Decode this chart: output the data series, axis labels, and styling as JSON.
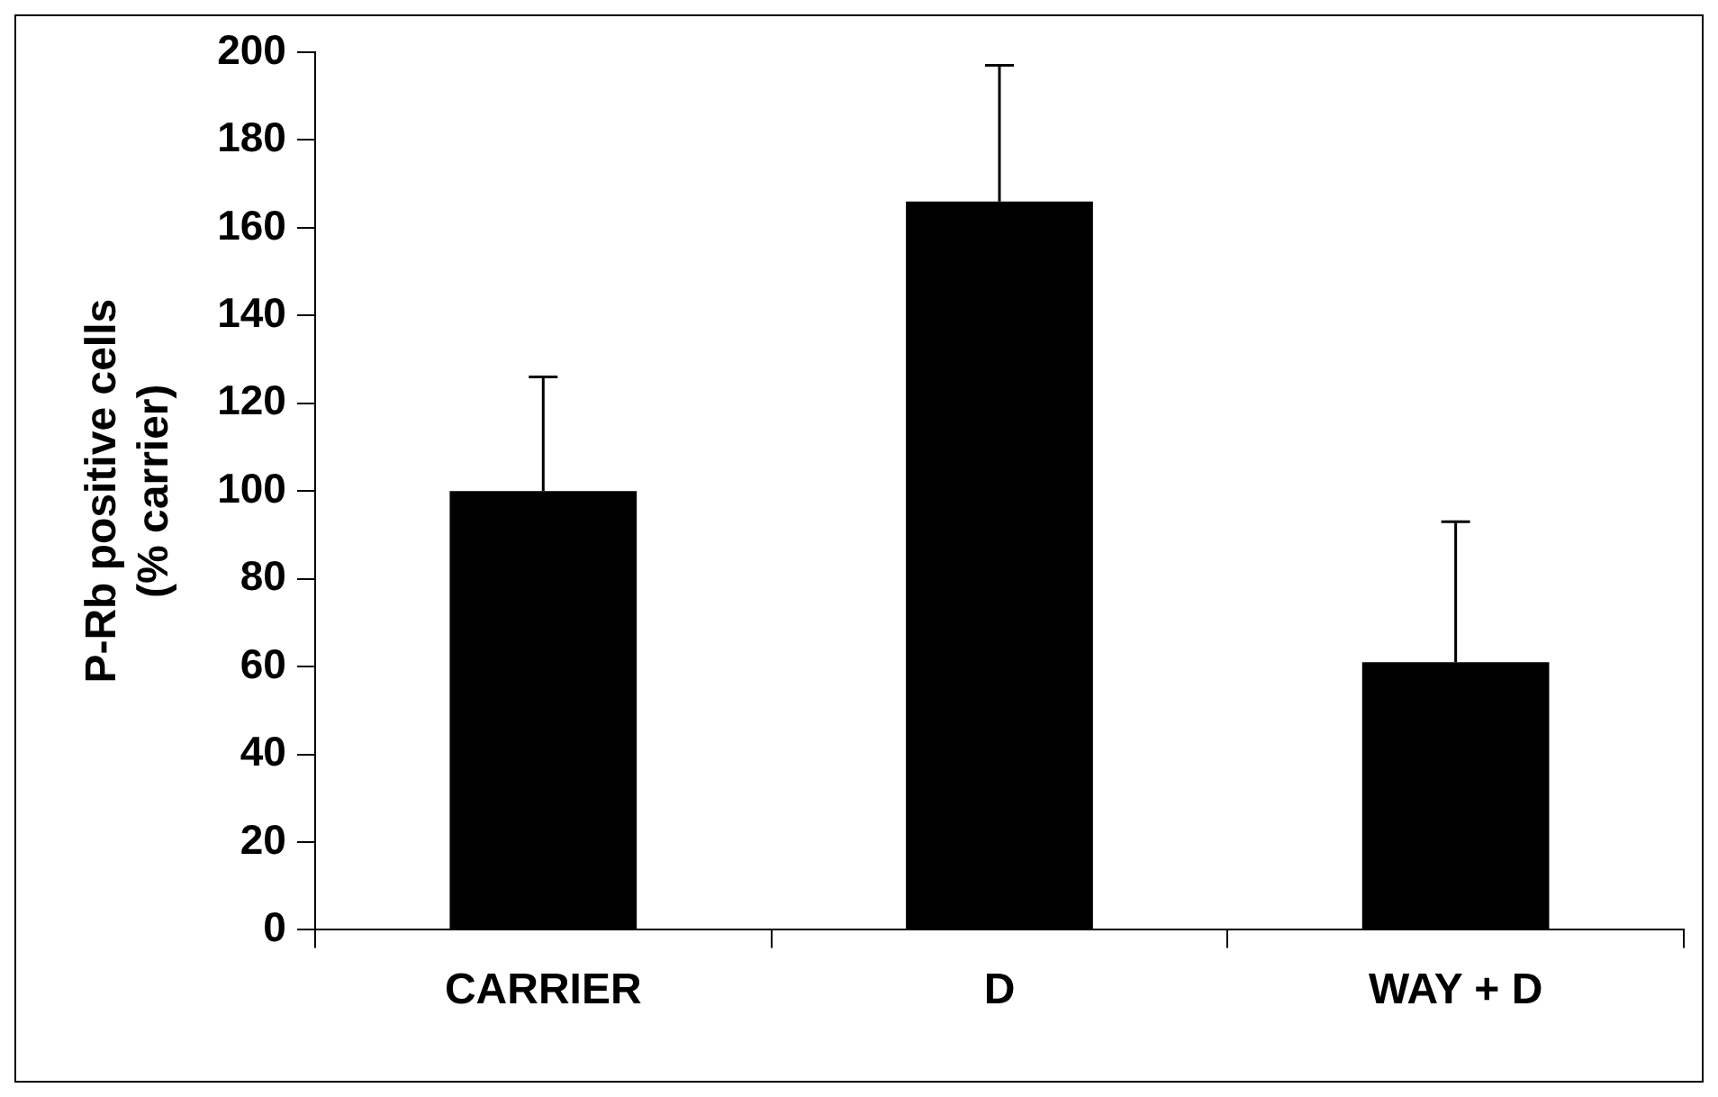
{
  "chart_data": {
    "type": "bar",
    "ylabel": "P-Rb positive cells\n(% carrier)",
    "categories": [
      "CARRIER",
      "D",
      "WAY + D"
    ],
    "values": [
      100,
      166,
      61
    ],
    "errors": [
      [
        100,
        126
      ],
      [
        166,
        197
      ],
      [
        61,
        93
      ]
    ],
    "color": "#000000",
    "ylim": [
      0,
      200
    ],
    "yticks": [
      0,
      20,
      40,
      60,
      80,
      100,
      120,
      140,
      160,
      180,
      200
    ],
    "grid": false,
    "legend": false
  }
}
